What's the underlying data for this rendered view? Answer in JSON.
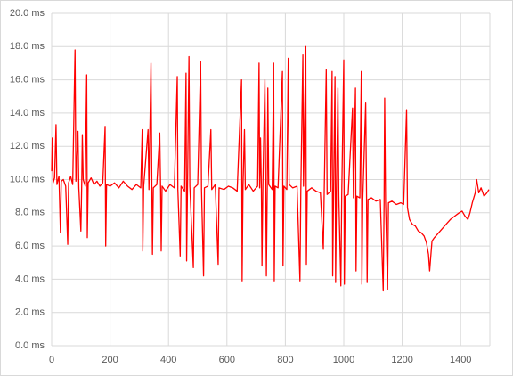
{
  "chart_data": {
    "type": "line",
    "color": "#ff0000",
    "grid": true,
    "xlim": [
      0,
      1500
    ],
    "xticks": [
      0,
      200,
      400,
      600,
      800,
      1000,
      1200,
      1400
    ],
    "ylim": [
      0,
      20
    ],
    "yticks": [
      {
        "value": 0,
        "label": "0.0 ms"
      },
      {
        "value": 2,
        "label": "2.0 ms"
      },
      {
        "value": 4,
        "label": "4.0 ms"
      },
      {
        "value": 6,
        "label": "6.0 ms"
      },
      {
        "value": 8,
        "label": "8.0 ms"
      },
      {
        "value": 10,
        "label": "10.0 ms"
      },
      {
        "value": 12,
        "label": "12.0 ms"
      },
      {
        "value": 14,
        "label": "14.0 ms"
      },
      {
        "value": 16,
        "label": "16.0 ms"
      },
      {
        "value": 18,
        "label": "18.0 ms"
      },
      {
        "value": 20,
        "label": "20.0 ms"
      }
    ],
    "x": [
      0,
      2,
      5,
      10,
      15,
      18,
      25,
      30,
      33,
      40,
      48,
      55,
      58,
      65,
      72,
      80,
      83,
      90,
      93,
      100,
      103,
      105,
      108,
      115,
      120,
      122,
      125,
      135,
      145,
      155,
      165,
      175,
      183,
      185,
      188,
      200,
      215,
      230,
      245,
      260,
      275,
      290,
      305,
      310,
      312,
      315,
      330,
      333,
      340,
      343,
      345,
      348,
      360,
      370,
      373,
      375,
      378,
      390,
      405,
      420,
      430,
      432,
      440,
      443,
      455,
      460,
      462,
      465,
      470,
      473,
      485,
      488,
      500,
      510,
      513,
      520,
      523,
      535,
      545,
      548,
      560,
      570,
      573,
      590,
      605,
      620,
      635,
      650,
      652,
      655,
      660,
      663,
      675,
      690,
      705,
      710,
      712,
      715,
      718,
      720,
      723,
      730,
      733,
      735,
      738,
      740,
      743,
      755,
      760,
      762,
      765,
      775,
      790,
      792,
      795,
      805,
      810,
      813,
      825,
      840,
      850,
      853,
      860,
      862,
      870,
      872,
      875,
      890,
      905,
      920,
      930,
      933,
      940,
      943,
      955,
      960,
      962,
      965,
      970,
      972,
      975,
      980,
      983,
      990,
      993,
      1000,
      1002,
      1005,
      1015,
      1030,
      1033,
      1040,
      1042,
      1045,
      1055,
      1060,
      1062,
      1065,
      1075,
      1078,
      1080,
      1083,
      1095,
      1110,
      1125,
      1135,
      1138,
      1140,
      1143,
      1150,
      1153,
      1165,
      1180,
      1195,
      1205,
      1215,
      1218,
      1225,
      1235,
      1245,
      1255,
      1265,
      1275,
      1283,
      1290,
      1294,
      1297,
      1302,
      1310,
      1320,
      1335,
      1350,
      1365,
      1380,
      1395,
      1405,
      1415,
      1425,
      1432,
      1440,
      1450,
      1455,
      1462,
      1470,
      1480,
      1490,
      1497
    ],
    "values": [
      10.5,
      12.5,
      9.8,
      10.1,
      13.3,
      9.7,
      10.2,
      6.8,
      9.9,
      10,
      9.6,
      6.1,
      9.8,
      10.2,
      9.7,
      17.8,
      9.9,
      12.9,
      9.5,
      6.9,
      9.8,
      12.7,
      10,
      9.6,
      16.3,
      6.5,
      9.8,
      10.1,
      9.7,
      9.9,
      9.6,
      9.8,
      13.2,
      6,
      9.7,
      9.6,
      9.8,
      9.5,
      9.9,
      9.6,
      9.4,
      9.7,
      9.5,
      13,
      5.7,
      9.6,
      13,
      9.4,
      17,
      9.6,
      5.5,
      9.5,
      9.7,
      12.8,
      9.4,
      5.7,
      9.6,
      9.3,
      9.7,
      9.5,
      16.2,
      9.4,
      5.4,
      9.6,
      9.3,
      16.4,
      5.1,
      9.5,
      17.4,
      9.6,
      4.7,
      9.5,
      9.7,
      17.1,
      9.4,
      4.2,
      9.5,
      9.6,
      13,
      9.4,
      9.7,
      4.9,
      9.5,
      9.4,
      9.6,
      9.5,
      9.3,
      16,
      3.9,
      9.6,
      13,
      9.4,
      9.7,
      9.3,
      9.6,
      17,
      9.5,
      12.5,
      9.4,
      4.8,
      9.6,
      16,
      9.5,
      4.2,
      9.4,
      15.5,
      9.7,
      9.4,
      17,
      3.9,
      9.6,
      9.5,
      16.5,
      4.8,
      9.6,
      9.4,
      17.3,
      9.7,
      9.5,
      9.6,
      3.9,
      9.4,
      17.5,
      9.6,
      18,
      4.9,
      9.3,
      9.5,
      9.3,
      9.2,
      5.8,
      9.2,
      16.6,
      9.1,
      9.3,
      16.5,
      4.2,
      9.1,
      16.2,
      3.8,
      9.2,
      15.5,
      9,
      3.6,
      9.1,
      17.2,
      3.7,
      9,
      9.1,
      14.3,
      8.9,
      15.5,
      4.5,
      9,
      8.9,
      16.5,
      3.7,
      8.8,
      14.6,
      8.9,
      3.8,
      8.8,
      8.9,
      8.7,
      8.8,
      3.3,
      8.6,
      14.9,
      8.7,
      3.4,
      8.6,
      8.7,
      8.5,
      8.6,
      8.5,
      14.2,
      8.3,
      7.6,
      7.3,
      7.2,
      6.9,
      6.8,
      6.6,
      6.2,
      5.5,
      4.5,
      5.2,
      6.3,
      6.5,
      6.7,
      7,
      7.3,
      7.6,
      7.8,
      8,
      8.1,
      7.8,
      7.6,
      8,
      8.6,
      9.2,
      10,
      9.2,
      9.5,
      9,
      9.2,
      9.4
    ]
  }
}
